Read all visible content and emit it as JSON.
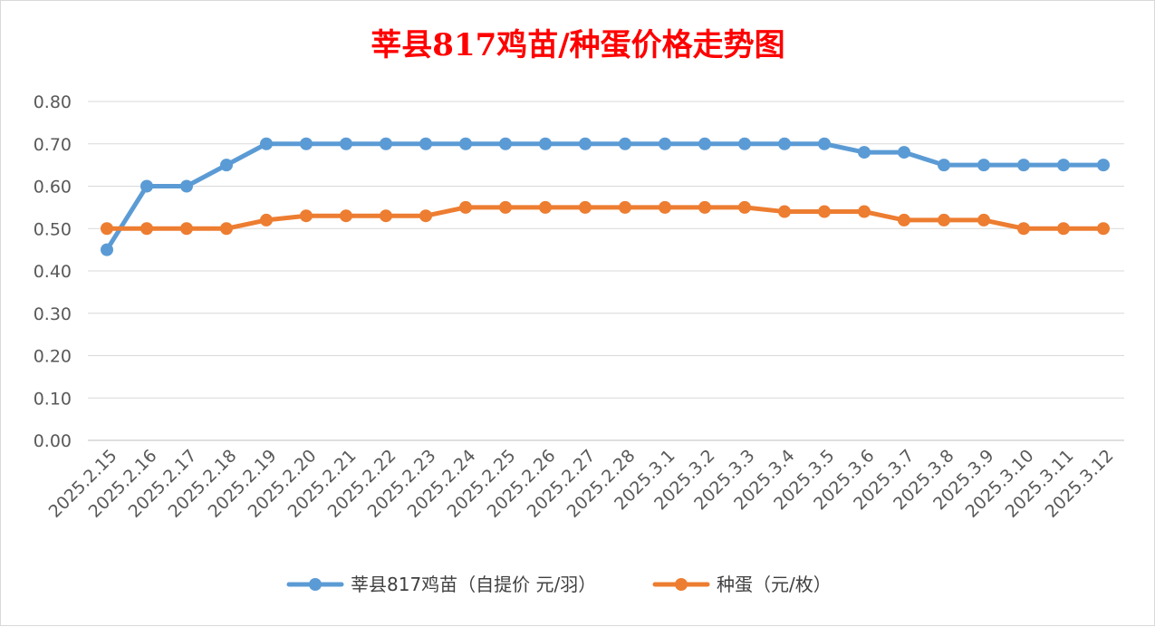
{
  "chart_data": {
    "type": "line",
    "title": "莘县817鸡苗/种蛋价格走势图",
    "xlabel": "",
    "ylabel": "",
    "categories": [
      "2025.2.15",
      "2025.2.16",
      "2025.2.17",
      "2025.2.18",
      "2025.2.19",
      "2025.2.20",
      "2025.2.21",
      "2025.2.22",
      "2025.2.23",
      "2025.2.24",
      "2025.2.25",
      "2025.2.26",
      "2025.2.27",
      "2025.2.28",
      "2025.3.1",
      "2025.3.2",
      "2025.3.3",
      "2025.3.4",
      "2025.3.5",
      "2025.3.6",
      "2025.3.7",
      "2025.3.8",
      "2025.3.9",
      "2025.3.10",
      "2025.3.11",
      "2025.3.12"
    ],
    "ylim": [
      0,
      0.8
    ],
    "yticks": [
      "0.00",
      "0.10",
      "0.20",
      "0.30",
      "0.40",
      "0.50",
      "0.60",
      "0.70",
      "0.80"
    ],
    "grid": true,
    "legend_position": "bottom",
    "series": [
      {
        "name": "莘县817鸡苗（自提价 元/羽）",
        "color": "#5b9bd5",
        "values": [
          0.45,
          0.6,
          0.6,
          0.65,
          0.7,
          0.7,
          0.7,
          0.7,
          0.7,
          0.7,
          0.7,
          0.7,
          0.7,
          0.7,
          0.7,
          0.7,
          0.7,
          0.7,
          0.7,
          0.68,
          0.68,
          0.65,
          0.65,
          0.65,
          0.65,
          0.65
        ]
      },
      {
        "name": "种蛋（元/枚）",
        "color": "#ed7d31",
        "values": [
          0.5,
          0.5,
          0.5,
          0.5,
          0.52,
          0.53,
          0.53,
          0.53,
          0.53,
          0.55,
          0.55,
          0.55,
          0.55,
          0.55,
          0.55,
          0.55,
          0.55,
          0.54,
          0.54,
          0.54,
          0.52,
          0.52,
          0.52,
          0.5,
          0.5,
          0.5
        ]
      }
    ]
  }
}
